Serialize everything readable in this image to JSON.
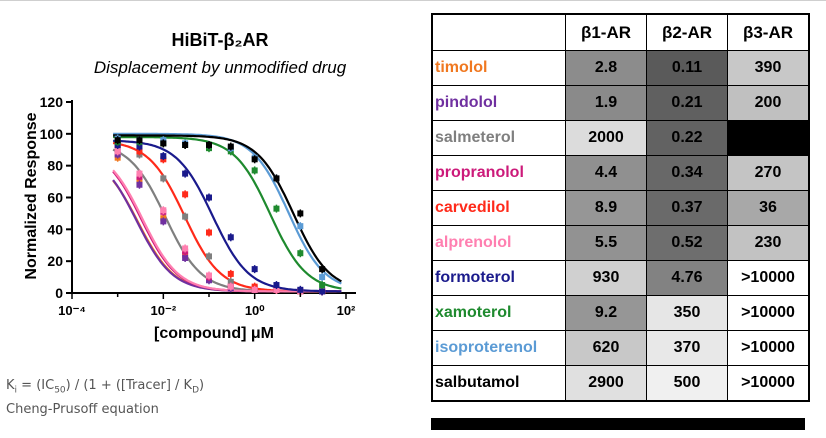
{
  "chart_title": "HiBiT-β₂AR",
  "chart_subtitle": "Displacement by unmodified drug",
  "formula_text": "Kᵢ = (IC₅₀) / (1 + ([Tracer] / K_D)",
  "equation_name": "Cheng-Prusoff equation",
  "chart_data": {
    "type": "scatter",
    "xlabel": "[compound] μM",
    "ylabel": "Normalized Response",
    "xscale": "log",
    "xlim": [
      0.0001,
      100
    ],
    "ylim": [
      0,
      120
    ],
    "xticks": [
      "10⁻⁴",
      "10⁻²",
      "10⁰",
      "10²"
    ],
    "yticks": [
      "0",
      "20",
      "40",
      "60",
      "80",
      "100",
      "120"
    ],
    "x": [
      0.001,
      0.003,
      0.01,
      0.03,
      0.1,
      0.3,
      1,
      3,
      10,
      30
    ],
    "series": [
      {
        "color": "#f07820",
        "fit_ic50": 0.0028,
        "values": [
          85,
          70,
          47,
          24,
          9,
          4,
          2,
          2,
          1,
          1
        ]
      },
      {
        "color": "#7030a0",
        "fit_ic50": 0.0026,
        "values": [
          87,
          68,
          45,
          22,
          8,
          3,
          2,
          2,
          1,
          1
        ]
      },
      {
        "color": "#7f7f7f",
        "fit_ic50": 0.011,
        "values": [
          92,
          87,
          72,
          48,
          23,
          7,
          3,
          2,
          1,
          1
        ]
      },
      {
        "color": "#cc1a7a",
        "fit_ic50": 0.0033,
        "values": [
          89,
          73,
          51,
          26,
          10,
          4,
          2,
          2,
          1,
          1
        ]
      },
      {
        "color": "#ff2a1a",
        "fit_ic50": 0.029,
        "values": [
          93,
          89,
          84,
          62,
          38,
          12,
          4,
          2,
          1,
          1
        ]
      },
      {
        "color": "#ff7fb0",
        "fit_ic50": 0.0035,
        "values": [
          89,
          75,
          52,
          28,
          11,
          4,
          2,
          2,
          1,
          1
        ]
      },
      {
        "color": "#1a1a8c",
        "fit_ic50": 0.12,
        "values": [
          93,
          92,
          86,
          75,
          60,
          35,
          15,
          5,
          2,
          1
        ]
      },
      {
        "color": "#1e8a2e",
        "fit_ic50": 2.2,
        "values": [
          95,
          95,
          94,
          93,
          91,
          89,
          77,
          53,
          25,
          5
        ]
      },
      {
        "color": "#5b9bd5",
        "fit_ic50": 5.5,
        "values": [
          97,
          96,
          96,
          94,
          93,
          91,
          85,
          72,
          42,
          10
        ]
      },
      {
        "color": "#000000",
        "fit_ic50": 7,
        "values": [
          96,
          96,
          94,
          93,
          93,
          92,
          84,
          72,
          50,
          15
        ]
      }
    ]
  },
  "table": {
    "headers": [
      "β1-AR",
      "β2-AR",
      "β3-AR"
    ],
    "rows": [
      {
        "name": "timolol",
        "color": "#f07820",
        "values": [
          "2.8",
          "0.11",
          "390"
        ],
        "shades": [
          "#8c8c8c",
          "#5a5a5a",
          "#c8c8c8"
        ]
      },
      {
        "name": "pindolol",
        "color": "#7030a0",
        "values": [
          "1.9",
          "0.21",
          "200"
        ],
        "shades": [
          "#8a8a8a",
          "#606060",
          "#c0c0c0"
        ]
      },
      {
        "name": "salmeterol",
        "color": "#7f7f7f",
        "values": [
          "2000",
          "0.22",
          ""
        ],
        "shades": [
          "#dcdcdc",
          "#626262",
          "#000000"
        ]
      },
      {
        "name": "propranolol",
        "color": "#cc1a7a",
        "values": [
          "4.4",
          "0.34",
          "270"
        ],
        "shades": [
          "#909090",
          "#686868",
          "#c4c4c4"
        ]
      },
      {
        "name": "carvedilol",
        "color": "#ff2a1a",
        "values": [
          "8.9",
          "0.37",
          "36"
        ],
        "shades": [
          "#969696",
          "#6a6a6a",
          "#a8a8a8"
        ]
      },
      {
        "name": "alprenolol",
        "color": "#ff7fb0",
        "values": [
          "5.5",
          "0.52",
          "230"
        ],
        "shades": [
          "#929292",
          "#6e6e6e",
          "#c2c2c2"
        ]
      },
      {
        "name": "formoterol",
        "color": "#1a1a8c",
        "values": [
          "930",
          "4.76",
          ">10000"
        ],
        "shades": [
          "#d0d0d0",
          "#828282",
          "#ffffff"
        ]
      },
      {
        "name": "xamoterol",
        "color": "#1e8a2e",
        "values": [
          "9.2",
          "350",
          ">10000"
        ],
        "shades": [
          "#969696",
          "#e6e6e6",
          "#ffffff"
        ]
      },
      {
        "name": "isoproterenol",
        "color": "#5b9bd5",
        "values": [
          "620",
          "370",
          ">10000"
        ],
        "shades": [
          "#c8c8c8",
          "#e8e8e8",
          "#ffffff"
        ]
      },
      {
        "name": "salbutamol",
        "color": "#000000",
        "values": [
          "2900",
          "500",
          ">10000"
        ],
        "shades": [
          "#e0e0e0",
          "#f0f0f0",
          "#ffffff"
        ]
      }
    ]
  }
}
